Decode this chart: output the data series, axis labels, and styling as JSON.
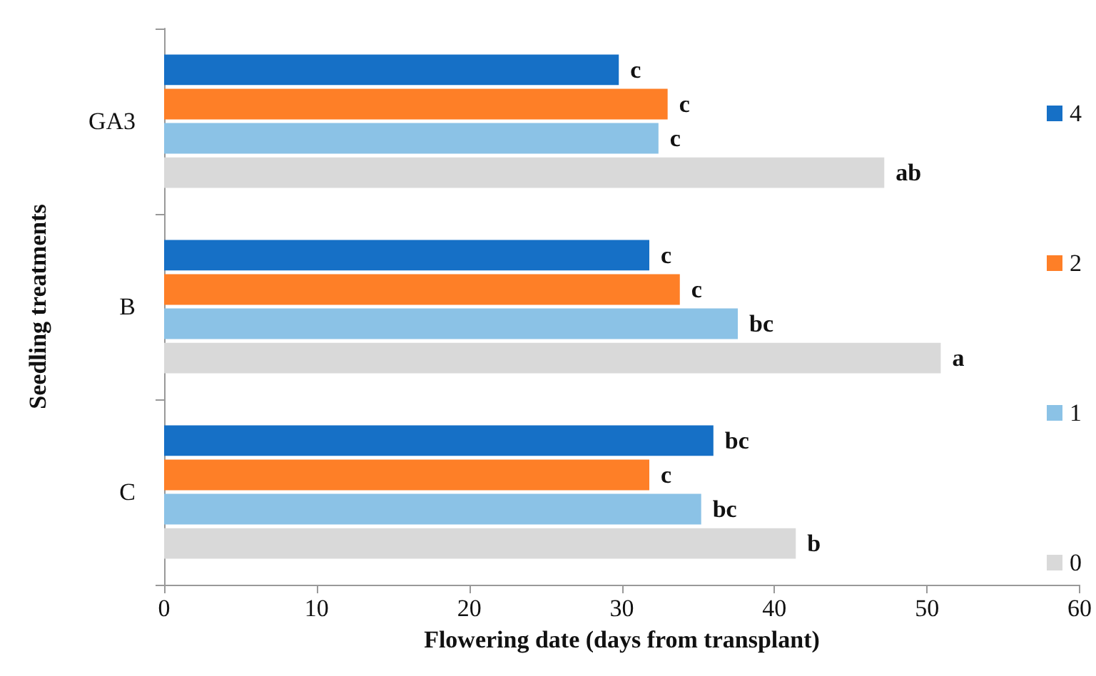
{
  "chart_data": {
    "type": "bar",
    "orientation": "horizontal",
    "xlabel": "Flowering date (days from transplant)",
    "ylabel": "Seedling treatments",
    "categories": [
      "GA3",
      "B",
      "C"
    ],
    "series": [
      {
        "name": "4",
        "color": "#1670c6",
        "values": [
          29.8,
          31.8,
          36.0
        ],
        "value_labels": [
          "c",
          "c",
          "bc"
        ]
      },
      {
        "name": "2",
        "color": "#fe7f27",
        "values": [
          33.0,
          33.8,
          31.8
        ],
        "value_labels": [
          "c",
          "c",
          "c"
        ]
      },
      {
        "name": "1",
        "color": "#8bc2e6",
        "values": [
          32.4,
          37.6,
          35.2
        ],
        "value_labels": [
          "c",
          "bc",
          "bc"
        ]
      },
      {
        "name": "0",
        "color": "#d9d9d9",
        "values": [
          47.2,
          50.9,
          41.4
        ],
        "value_labels": [
          "ab",
          "a",
          "b"
        ]
      }
    ],
    "xlim": [
      0,
      60
    ],
    "xticks": [
      0,
      10,
      20,
      30,
      40,
      50,
      60
    ],
    "grid": false,
    "legend": "right"
  }
}
